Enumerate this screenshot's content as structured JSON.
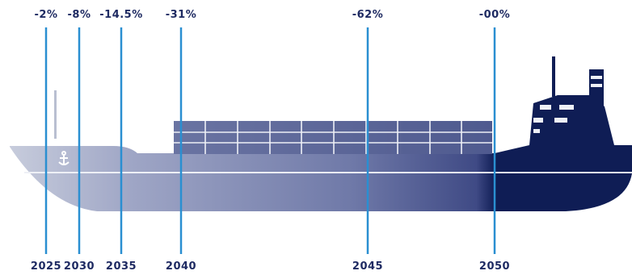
{
  "colors": {
    "hull_light": "#c7ccdc",
    "hull_mid": "#7f89b3",
    "hull_dark": "#45508b",
    "hull_navy": "#0f1d55",
    "containers": "#5d6899",
    "container_lines": "#eef0f6",
    "marker_line": "#2a8fd1",
    "label_text": "#1e2a62",
    "anchor": "#ffffff"
  },
  "icons": {
    "anchor": "anchor-icon",
    "ship": "ship-icon"
  },
  "timeline": [
    {
      "year": "2025",
      "reduction": "-2%"
    },
    {
      "year": "2030",
      "reduction": "-8%"
    },
    {
      "year": "2035",
      "reduction": "-14.5%"
    },
    {
      "year": "2040",
      "reduction": "-31%"
    },
    {
      "year": "2045",
      "reduction": "-62%"
    },
    {
      "year": "2050",
      "reduction": "-00%"
    }
  ]
}
